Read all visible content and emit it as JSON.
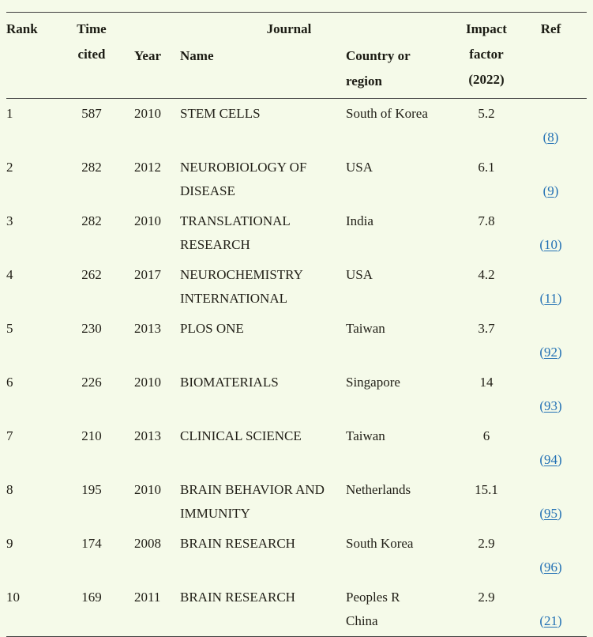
{
  "colors": {
    "background": "#f5fae9",
    "text": "#222018",
    "header_text": "#1c1c14",
    "rule": "#3e3e3e",
    "link": "#2270b4"
  },
  "table": {
    "header": {
      "rank": "Rank",
      "time_cited": "Time\ncited",
      "journal": "Journal",
      "year": "Year",
      "name": "Name",
      "country": "Country or\nregion",
      "impact": "Impact\nfactor\n(2022)",
      "ref": "Ref"
    },
    "ref_paren_open": "(",
    "ref_paren_close": ")",
    "rows": [
      {
        "rank": "1",
        "time_cited": "587",
        "year": "2010",
        "name": "STEM CELLS",
        "country": "South of Korea",
        "impact": "5.2",
        "ref": "8"
      },
      {
        "rank": "2",
        "time_cited": "282",
        "year": "2012",
        "name": "NEUROBIOLOGY OF\nDISEASE",
        "country": "USA",
        "impact": "6.1",
        "ref": "9"
      },
      {
        "rank": "3",
        "time_cited": "282",
        "year": "2010",
        "name": "TRANSLATIONAL\nRESEARCH",
        "country": "India",
        "impact": "7.8",
        "ref": "10"
      },
      {
        "rank": "4",
        "time_cited": "262",
        "year": "2017",
        "name": "NEUROCHEMISTRY\nINTERNATIONAL",
        "country": "USA",
        "impact": "4.2",
        "ref": "11"
      },
      {
        "rank": "5",
        "time_cited": "230",
        "year": "2013",
        "name": "PLOS ONE",
        "country": "Taiwan",
        "impact": "3.7",
        "ref": "92"
      },
      {
        "rank": "6",
        "time_cited": "226",
        "year": "2010",
        "name": "BIOMATERIALS",
        "country": "Singapore",
        "impact": "14",
        "ref": "93"
      },
      {
        "rank": "7",
        "time_cited": "210",
        "year": "2013",
        "name": "CLINICAL SCIENCE",
        "country": "Taiwan",
        "impact": "6",
        "ref": "94"
      },
      {
        "rank": "8",
        "time_cited": "195",
        "year": "2010",
        "name": "BRAIN BEHAVIOR AND\nIMMUNITY",
        "country": "Netherlands",
        "impact": "15.1",
        "ref": "95"
      },
      {
        "rank": "9",
        "time_cited": "174",
        "year": "2008",
        "name": "BRAIN RESEARCH",
        "country": "South Korea",
        "impact": "2.9",
        "ref": "96"
      },
      {
        "rank": "10",
        "time_cited": "169",
        "year": "2011",
        "name": "BRAIN RESEARCH",
        "country": "Peoples R\nChina",
        "impact": "2.9",
        "ref": "21"
      }
    ]
  }
}
